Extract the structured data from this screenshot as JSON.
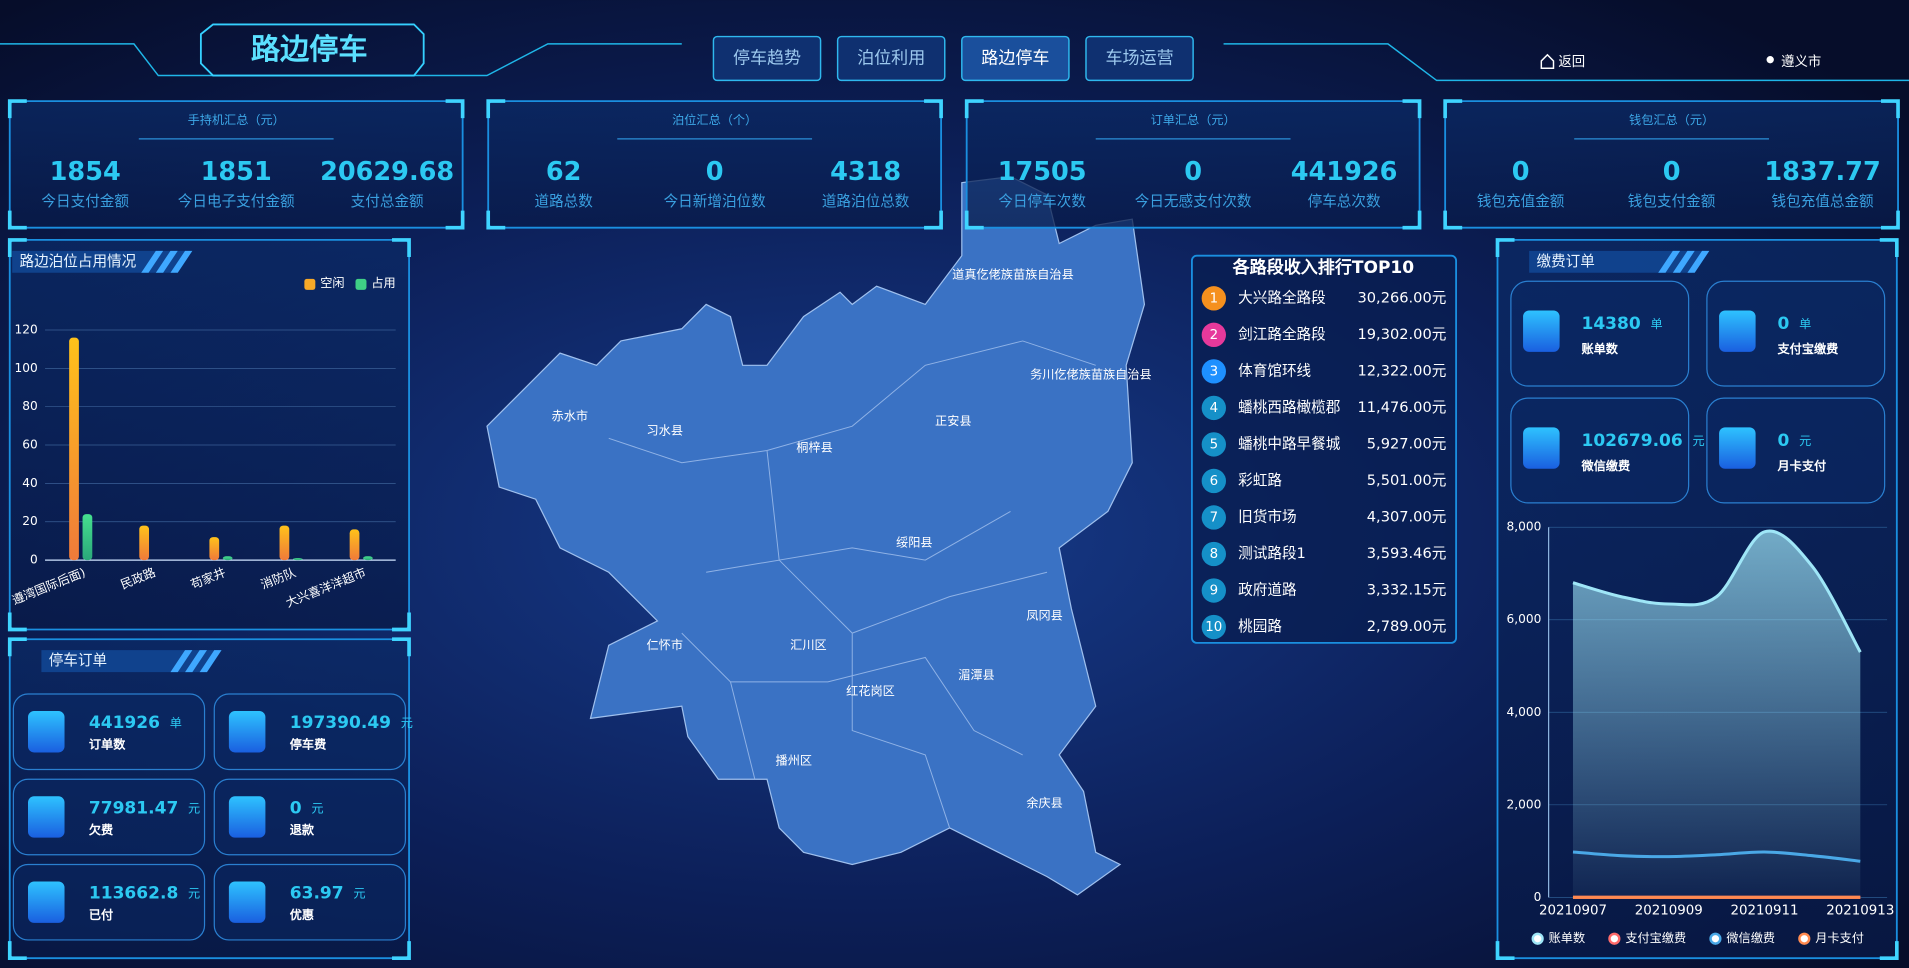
{
  "header": {
    "title": "路边停车",
    "tabs": [
      "停车趋势",
      "泊位利用",
      "路边停车",
      "车场运营"
    ],
    "active_tab": 2,
    "back": "返回",
    "city": "遵义市"
  },
  "summary": [
    {
      "title": "手持机汇总（元）",
      "items": [
        {
          "value": 1854,
          "label": "今日支付金额"
        },
        {
          "value": 1851,
          "label": "今日电子支付金额"
        },
        {
          "value": 20629.68,
          "label": "支付总金额"
        }
      ]
    },
    {
      "title": "泊位汇总（个）",
      "items": [
        {
          "value": 62,
          "label": "道路总数"
        },
        {
          "value": 0,
          "label": "今日新增泊位数"
        },
        {
          "value": 4318,
          "label": "道路泊位总数"
        }
      ]
    },
    {
      "title": "订单汇总（元）",
      "items": [
        {
          "value": 17505,
          "label": "今日停车次数"
        },
        {
          "value": 0,
          "label": "今日无感支付次数"
        },
        {
          "value": 441926,
          "label": "停车总次数"
        }
      ]
    },
    {
      "title": "钱包汇总（元）",
      "items": [
        {
          "value": 0,
          "label": "钱包充值金额"
        },
        {
          "value": 0,
          "label": "钱包支付金额"
        },
        {
          "value": 1837.77,
          "label": "钱包充值总金额"
        }
      ]
    }
  ],
  "occupancy_chart": {
    "type": "bar",
    "title": "路边泊位占用情况",
    "categories": [
      "遵湾国际后面)",
      "民政路",
      "苟家井",
      "消防队",
      "大兴喜洋洋超市"
    ],
    "series": [
      {
        "name": "空闲",
        "color": "#f7a928",
        "values": [
          116,
          18,
          12,
          18,
          16
        ]
      },
      {
        "name": "占用",
        "color": "#3fcf86",
        "values": [
          24,
          0,
          2,
          1,
          2
        ]
      }
    ],
    "ylim": [
      0,
      120
    ],
    "yticks": [
      0,
      20,
      40,
      60,
      80,
      100,
      120
    ],
    "grid": true
  },
  "parking_orders": {
    "title": "停车订单",
    "items": [
      {
        "value": 441926,
        "unit": "单",
        "label": "订单数"
      },
      {
        "value": 197390.49,
        "unit": "元",
        "label": "停车费"
      },
      {
        "value": 77981.47,
        "unit": "元",
        "label": "欠费"
      },
      {
        "value": 0,
        "unit": "元",
        "label": "退款"
      },
      {
        "value": 113662.8,
        "unit": "元",
        "label": "已付"
      },
      {
        "value": 63.97,
        "unit": "元",
        "label": "优惠"
      }
    ]
  },
  "map": {
    "regions": [
      "赤水市",
      "习水县",
      "桐梓县",
      "正安县",
      "道真仡佬族苗族自治县",
      "务川仡佬族苗族自治县",
      "绥阳县",
      "凤冈县",
      "湄潭县",
      "仁怀市",
      "汇川区",
      "红花岗区",
      "播州区",
      "余庆县"
    ]
  },
  "ranking": {
    "title": "各路段收入排行TOP10",
    "rows": [
      {
        "rank": 1,
        "name": "大兴路全路段",
        "amount": "30,266.00元"
      },
      {
        "rank": 2,
        "name": "剑江路全路段",
        "amount": "19,302.00元"
      },
      {
        "rank": 3,
        "name": "体育馆环线",
        "amount": "12,322.00元"
      },
      {
        "rank": 4,
        "name": "蟠桃西路橄榄郡",
        "amount": "11,476.00元"
      },
      {
        "rank": 5,
        "name": "蟠桃中路早餐城",
        "amount": "5,927.00元"
      },
      {
        "rank": 6,
        "name": "彩虹路",
        "amount": "5,501.00元"
      },
      {
        "rank": 7,
        "name": "旧货市场",
        "amount": "4,307.00元"
      },
      {
        "rank": 8,
        "name": "测试路段1",
        "amount": "3,593.46元"
      },
      {
        "rank": 9,
        "name": "政府道路",
        "amount": "3,332.15元"
      },
      {
        "rank": 10,
        "name": "桃园路",
        "amount": "2,789.00元"
      }
    ]
  },
  "payment": {
    "title": "缴费订单",
    "items": [
      {
        "value": 14380,
        "unit": "单",
        "label": "账单数"
      },
      {
        "value": 0,
        "unit": "单",
        "label": "支付宝缴费"
      },
      {
        "value": 102679.06,
        "unit": "元",
        "label": "微信缴费"
      },
      {
        "value": 0,
        "unit": "元",
        "label": "月卡支付"
      }
    ],
    "chart": {
      "type": "line",
      "categories": [
        "20210907",
        null,
        "20210909",
        null,
        "20210911",
        null,
        "20210913"
      ],
      "series": [
        {
          "name": "账单数",
          "color": "#9fe6f7",
          "values": [
            6800,
            6500,
            6340,
            6500,
            7900,
            7150,
            5300
          ]
        },
        {
          "name": "支付宝缴费",
          "color": "#ff6b6b",
          "values": [
            0,
            0,
            0,
            0,
            0,
            0,
            0
          ]
        },
        {
          "name": "微信缴费",
          "color": "#4aa8e6",
          "values": [
            980,
            900,
            880,
            920,
            980,
            900,
            780
          ]
        },
        {
          "name": "月卡支付",
          "color": "#ff8a50",
          "values": [
            0,
            0,
            0,
            0,
            0,
            0,
            0
          ]
        }
      ],
      "ylim": [
        0,
        8000
      ],
      "yticks": [
        0,
        {
          "value": 2000,
          "label": "2,000"
        },
        {
          "value": 4000,
          "label": "4,000"
        },
        {
          "value": 6000,
          "label": "6,000"
        },
        {
          "value": 8000,
          "label": "8,000"
        }
      ],
      "grid": true
    }
  }
}
